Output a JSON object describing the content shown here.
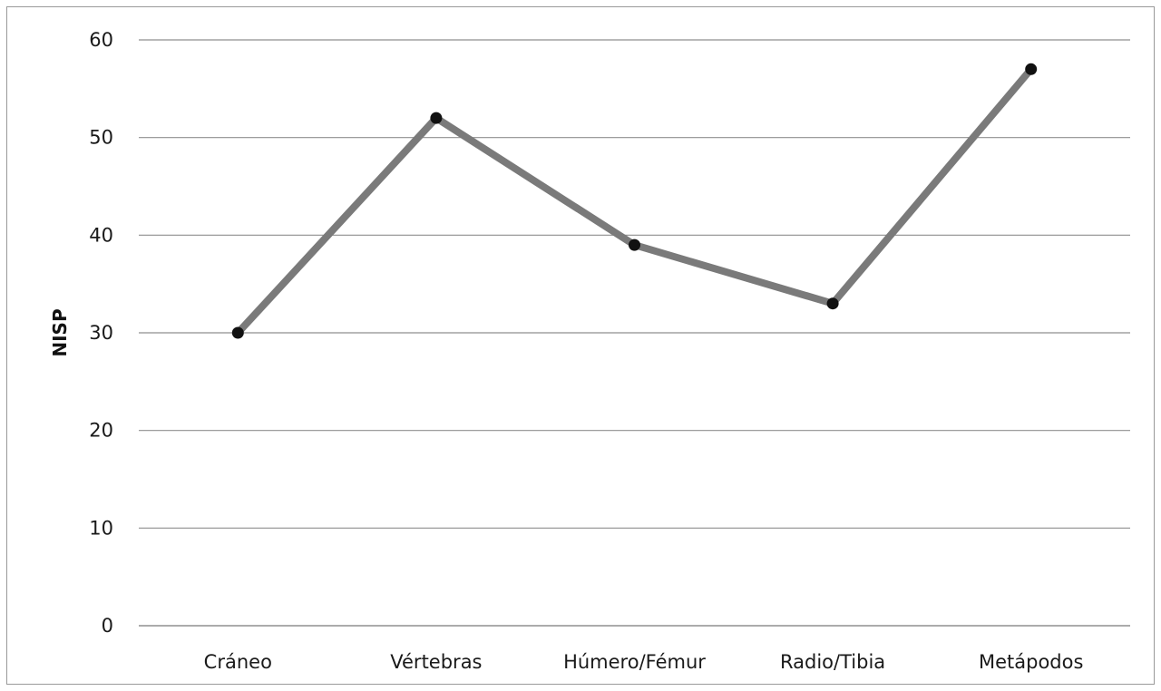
{
  "chart_data": {
    "type": "line",
    "title": "",
    "xlabel": "",
    "ylabel": "NISP",
    "ylim": [
      0,
      60
    ],
    "yticks": [
      0,
      10,
      20,
      30,
      40,
      50,
      60
    ],
    "grid": true,
    "legend": "none",
    "categories": [
      "Cráneo",
      "Vértebras",
      "Húmero/Fémur",
      "Radio/Tibia",
      "Metápodos"
    ],
    "series": [
      {
        "values": [
          30,
          52,
          39,
          33,
          57
        ],
        "color": "#7a7a7a",
        "marker_color": "#111111"
      }
    ]
  }
}
